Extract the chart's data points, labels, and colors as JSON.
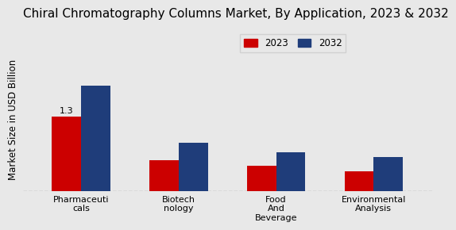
{
  "title": "Chiral Chromatography Columns Market, By Application, 2023 & 2032",
  "ylabel": "Market Size in USD Billion",
  "categories": [
    "Pharmaceuti\ncals",
    "Biotech\nnology",
    "Food\nAnd\nBeverage",
    "Environmental\nAnalysis"
  ],
  "values_2023": [
    1.3,
    0.55,
    0.45,
    0.35
  ],
  "values_2032": [
    1.85,
    0.85,
    0.68,
    0.6
  ],
  "color_2023": "#cc0000",
  "color_2032": "#1f3d7a",
  "background_color": "#e8e8e8",
  "bar_width": 0.3,
  "annotation_val": "1.3",
  "legend_labels": [
    "2023",
    "2032"
  ],
  "ylim": [
    0,
    2.5
  ],
  "title_fontsize": 11,
  "axis_label_fontsize": 8.5,
  "tick_fontsize": 8,
  "legend_fontsize": 8.5
}
